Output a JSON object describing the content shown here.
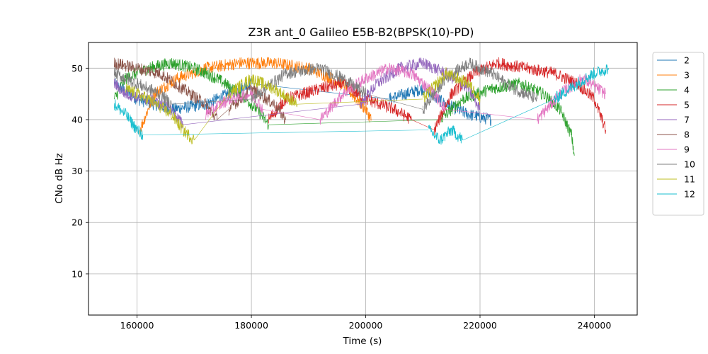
{
  "chart_data": {
    "type": "line",
    "title": "Z3R ant_0 Galileo E5B-B2(BPSK(10)-PD)",
    "xlabel": "Time (s)",
    "ylabel": "CNo dB Hz",
    "xlim": [
      151500,
      247500
    ],
    "ylim": [
      2,
      55
    ],
    "xticks": [
      160000,
      180000,
      200000,
      220000,
      240000
    ],
    "yticks": [
      10,
      20,
      30,
      40,
      50
    ],
    "grid": true,
    "legend_position": "right, outside plot",
    "series": [
      {
        "name": "2",
        "color": "#1f77b4",
        "segments": [
          {
            "points": [
              [
                156000,
                47
              ],
              [
                160000,
                44
              ],
              [
                166000,
                42
              ],
              [
                172000,
                43
              ],
              [
                176000,
                45
              ],
              [
                180000,
                47
              ]
            ]
          },
          {
            "points": [
              [
                204000,
                44
              ],
              [
                210000,
                46
              ],
              [
                214000,
                43
              ],
              [
                218000,
                41
              ],
              [
                222000,
                40
              ]
            ]
          }
        ]
      },
      {
        "name": "3",
        "color": "#ff7f0e",
        "segments": [
          {
            "points": [
              [
                160500,
                38
              ],
              [
                163000,
                45
              ],
              [
                167000,
                48
              ],
              [
                172000,
                50
              ],
              [
                178000,
                51
              ],
              [
                184000,
                51
              ],
              [
                190000,
                50
              ],
              [
                196000,
                47
              ],
              [
                200000,
                42
              ],
              [
                201000,
                40
              ]
            ]
          }
        ]
      },
      {
        "name": "4",
        "color": "#2ca02c",
        "segments": [
          {
            "points": [
              [
                156000,
                44
              ],
              [
                158000,
                48
              ],
              [
                162000,
                50
              ],
              [
                166000,
                51
              ],
              [
                170000,
                50
              ],
              [
                174000,
                48
              ],
              [
                178000,
                45
              ],
              [
                181000,
                42
              ],
              [
                183000,
                39
              ]
            ]
          },
          {
            "points": [
              [
                213000,
                40
              ],
              [
                217000,
                44
              ],
              [
                222000,
                46
              ],
              [
                227000,
                47
              ],
              [
                231000,
                45
              ],
              [
                234000,
                42
              ],
              [
                236000,
                37
              ],
              [
                236500,
                33
              ]
            ]
          }
        ]
      },
      {
        "name": "5",
        "color": "#d62728",
        "segments": [
          {
            "points": [
              [
                183000,
                40
              ],
              [
                186000,
                44
              ],
              [
                192000,
                46
              ],
              [
                196000,
                47
              ],
              [
                200000,
                44
              ],
              [
                205000,
                42
              ],
              [
                208000,
                40
              ]
            ]
          },
          {
            "points": [
              [
                212000,
                38
              ],
              [
                215000,
                45
              ],
              [
                219000,
                49
              ],
              [
                223000,
                51
              ],
              [
                228000,
                50
              ],
              [
                233000,
                49
              ],
              [
                237000,
                47
              ],
              [
                240000,
                44
              ],
              [
                242000,
                38
              ]
            ]
          }
        ]
      },
      {
        "name": "7",
        "color": "#9467bd",
        "segments": [
          {
            "points": [
              [
                156000,
                47
              ],
              [
                158000,
                45
              ],
              [
                162000,
                44
              ],
              [
                166000,
                42
              ],
              [
                168000,
                39
              ]
            ]
          },
          {
            "points": [
              [
                199000,
                43
              ],
              [
                202000,
                47
              ],
              [
                206000,
                50
              ],
              [
                210000,
                51
              ],
              [
                214000,
                49
              ],
              [
                218000,
                46
              ],
              [
                220000,
                42
              ]
            ]
          }
        ]
      },
      {
        "name": "8",
        "color": "#8c564b",
        "segments": [
          {
            "points": [
              [
                156000,
                51
              ],
              [
                160000,
                50
              ],
              [
                164000,
                49
              ],
              [
                168000,
                46
              ],
              [
                172000,
                43
              ],
              [
                174000,
                40
              ]
            ]
          },
          {
            "points": [
              [
                176000,
                42
              ],
              [
                180000,
                46
              ],
              [
                184000,
                43
              ],
              [
                186000,
                40
              ]
            ]
          }
        ]
      },
      {
        "name": "9",
        "color": "#e377c2",
        "segments": [
          {
            "points": [
              [
                172000,
                41
              ],
              [
                176000,
                44
              ],
              [
                180000,
                45
              ],
              [
                182000,
                42
              ]
            ]
          },
          {
            "points": [
              [
                192000,
                40
              ],
              [
                196000,
                45
              ],
              [
                200000,
                48
              ],
              [
                204000,
                50
              ],
              [
                208000,
                49
              ],
              [
                212000,
                45
              ],
              [
                214000,
                42
              ]
            ]
          },
          {
            "points": [
              [
                230000,
                40
              ],
              [
                234000,
                45
              ],
              [
                238000,
                48
              ],
              [
                242000,
                45
              ]
            ]
          }
        ]
      },
      {
        "name": "10",
        "color": "#7f7f7f",
        "segments": [
          {
            "points": [
              [
                156000,
                49
              ],
              [
                160000,
                47
              ],
              [
                164000,
                45
              ],
              [
                166000,
                43
              ]
            ]
          },
          {
            "points": [
              [
                180000,
                44
              ],
              [
                186000,
                49
              ],
              [
                192000,
                50
              ],
              [
                196000,
                48
              ],
              [
                200000,
                45
              ]
            ]
          },
          {
            "points": [
              [
                210000,
                42
              ],
              [
                214000,
                48
              ],
              [
                218000,
                51
              ],
              [
                222000,
                49
              ],
              [
                226000,
                46
              ],
              [
                230000,
                44
              ]
            ]
          }
        ]
      },
      {
        "name": "11",
        "color": "#bcbd22",
        "segments": [
          {
            "points": [
              [
                158000,
                46
              ],
              [
                162000,
                44
              ],
              [
                166000,
                41
              ],
              [
                168000,
                38
              ],
              [
                170000,
                36
              ]
            ]
          },
          {
            "points": [
              [
                176000,
                45
              ],
              [
                180000,
                48
              ],
              [
                184000,
                46
              ],
              [
                188000,
                43
              ]
            ]
          },
          {
            "points": [
              [
                210000,
                44
              ],
              [
                214000,
                49
              ],
              [
                218000,
                47
              ],
              [
                220000,
                44
              ]
            ]
          }
        ]
      },
      {
        "name": "12",
        "color": "#17becf",
        "segments": [
          {
            "points": [
              [
                156000,
                43
              ],
              [
                158000,
                41
              ],
              [
                160000,
                38
              ],
              [
                161000,
                37
              ]
            ]
          },
          {
            "points": [
              [
                211000,
                38
              ],
              [
                213000,
                36
              ],
              [
                215000,
                38
              ],
              [
                217000,
                36
              ]
            ]
          },
          {
            "points": [
              [
                233000,
                44
              ],
              [
                237000,
                47
              ],
              [
                240000,
                49
              ],
              [
                242500,
                50
              ]
            ]
          }
        ]
      }
    ]
  }
}
